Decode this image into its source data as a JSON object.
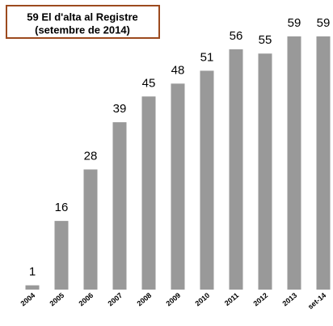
{
  "chart_data": {
    "type": "bar",
    "title": "59 El d'alta al Registre",
    "subtitle": "(setembre de 2014)",
    "categories": [
      "2004",
      "2005",
      "2006",
      "2007",
      "2008",
      "2009",
      "2010",
      "2011",
      "2012",
      "2013",
      "set-14"
    ],
    "values": [
      1,
      16,
      28,
      39,
      45,
      48,
      51,
      56,
      55,
      59,
      59
    ],
    "color": "#999999"
  }
}
